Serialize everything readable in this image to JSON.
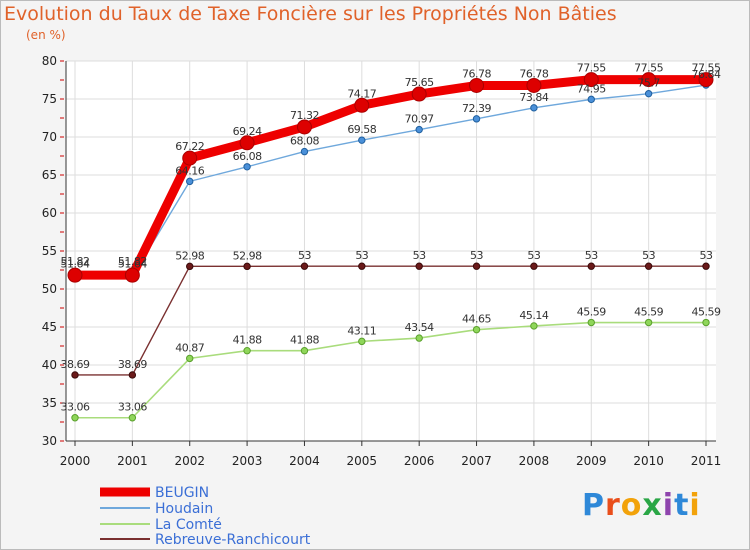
{
  "chart_data": {
    "type": "line",
    "title": "Evolution du Taux de Taxe Foncière sur les Propriétés Non Bâties",
    "ylabel": "(en %)",
    "xlabel": "",
    "ylim": [
      30,
      80
    ],
    "yticks": [
      30,
      35,
      40,
      45,
      50,
      55,
      60,
      65,
      70,
      75,
      80
    ],
    "categories": [
      "2000",
      "2001",
      "2002",
      "2003",
      "2004",
      "2005",
      "2006",
      "2007",
      "2008",
      "2009",
      "2010",
      "2011"
    ],
    "series": [
      {
        "name": "BEUGIN",
        "color": "#ee0000",
        "values": [
          51.82,
          51.82,
          67.22,
          69.24,
          71.32,
          74.17,
          75.65,
          76.78,
          76.78,
          77.55,
          77.55,
          77.55
        ],
        "labels": [
          "51.82",
          "51.82",
          "67.22",
          "69.24",
          "71.32",
          "74.17",
          "75.65",
          "76.78",
          "76.78",
          "77.55",
          "77.55",
          "77.55"
        ]
      },
      {
        "name": "Houdain",
        "color": "#6fa8dc",
        "values": [
          51.64,
          51.64,
          64.16,
          66.08,
          68.08,
          69.58,
          70.97,
          72.39,
          73.84,
          74.95,
          75.7,
          76.84
        ],
        "labels": [
          "51.64",
          "51.64",
          "64.16",
          "66.08",
          "68.08",
          "69.58",
          "70.97",
          "72.39",
          "73.84",
          "74.95",
          "75.7",
          "76.84"
        ]
      },
      {
        "name": "La Comté",
        "color": "#a9dc7c",
        "values": [
          33.06,
          33.06,
          40.87,
          41.88,
          41.88,
          43.11,
          43.54,
          44.65,
          45.14,
          45.59,
          45.59,
          45.59
        ],
        "labels": [
          "33.06",
          "33.06",
          "40.87",
          "41.88",
          "41.88",
          "43.11",
          "43.54",
          "44.65",
          "45.14",
          "45.59",
          "45.59",
          "45.59"
        ]
      },
      {
        "name": "Rebreuve-Ranchicourt",
        "color": "#7a3030",
        "values": [
          38.69,
          38.69,
          52.98,
          52.98,
          53,
          53,
          53,
          53,
          53,
          53,
          53,
          53
        ],
        "labels": [
          "38.69",
          "38.69",
          "52.98",
          "52.98",
          "53",
          "53",
          "53",
          "53",
          "53",
          "53",
          "53",
          "53"
        ]
      }
    ],
    "legend_position": "bottom-left",
    "grid": true
  },
  "branding": {
    "logo_letters": [
      "P",
      "r",
      "o",
      "x",
      "i",
      "t",
      "i"
    ]
  }
}
